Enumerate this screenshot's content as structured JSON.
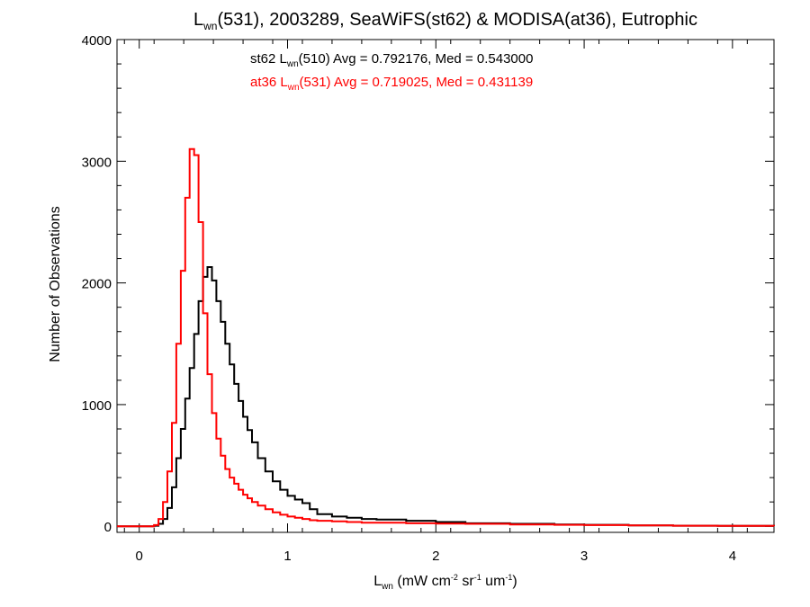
{
  "chart_data": {
    "type": "step-histogram",
    "title": {
      "base": "L",
      "sub": "wn",
      "rest": "(531), 2003289, SeaWiFS(st62) & MODISA(at36), Eutrophic"
    },
    "xlabel": {
      "base": "L",
      "sub": "wn",
      "p1": " (mW cm",
      "s1": "-2",
      "p2": " sr",
      "s2": "-1",
      "p3": " um",
      "s3": "-1",
      "p4": ")"
    },
    "ylabel": "Number of Observations",
    "xlim": [
      -0.15,
      4.28
    ],
    "ylim": [
      -50,
      4000
    ],
    "xticks": [
      0,
      1,
      2,
      3,
      4
    ],
    "xtick_labels": [
      "0",
      "1",
      "2",
      "3",
      "4"
    ],
    "yticks": [
      0,
      1000,
      2000,
      3000,
      4000
    ],
    "ytick_labels": [
      "0",
      "1000",
      "2000",
      "3000",
      "4000"
    ],
    "grid": false,
    "colors": {
      "st62": "#000000",
      "at36": "#ff0000"
    },
    "annotations": [
      {
        "part1": "st62 L",
        "sub": "wn",
        "part2": "(510) Avg = 0.792176, Med = 0.543000",
        "color": "#000000"
      },
      {
        "part1": "at36 L",
        "sub": "wn",
        "part2": "(531) Avg = 0.719025, Med = 0.431139",
        "color": "#ff0000"
      }
    ],
    "series": [
      {
        "color": "#000000",
        "x": [
          -0.15,
          0.0,
          0.1,
          0.13,
          0.16,
          0.19,
          0.22,
          0.25,
          0.28,
          0.31,
          0.34,
          0.37,
          0.4,
          0.43,
          0.46,
          0.49,
          0.52,
          0.55,
          0.58,
          0.61,
          0.64,
          0.67,
          0.7,
          0.73,
          0.76,
          0.8,
          0.85,
          0.9,
          0.95,
          1.0,
          1.05,
          1.1,
          1.15,
          1.2,
          1.3,
          1.4,
          1.5,
          1.6,
          1.8,
          2.0,
          2.2,
          2.5,
          2.8,
          3.0,
          3.3,
          3.6,
          3.9,
          4.28
        ],
        "y": [
          0,
          0,
          5,
          20,
          60,
          150,
          320,
          560,
          800,
          1050,
          1300,
          1580,
          1850,
          2050,
          2130,
          2020,
          1850,
          1680,
          1500,
          1330,
          1170,
          1030,
          900,
          790,
          690,
          560,
          450,
          370,
          300,
          250,
          220,
          190,
          140,
          100,
          80,
          70,
          60,
          55,
          45,
          35,
          25,
          20,
          15,
          12,
          8,
          5,
          3,
          2
        ]
      },
      {
        "color": "#ff0000",
        "x": [
          -0.15,
          0.0,
          0.1,
          0.13,
          0.16,
          0.19,
          0.22,
          0.25,
          0.28,
          0.31,
          0.34,
          0.37,
          0.4,
          0.43,
          0.46,
          0.49,
          0.52,
          0.55,
          0.58,
          0.61,
          0.64,
          0.67,
          0.7,
          0.73,
          0.76,
          0.8,
          0.85,
          0.9,
          0.95,
          1.0,
          1.05,
          1.1,
          1.15,
          1.2,
          1.3,
          1.4,
          1.5,
          1.6,
          1.8,
          2.0,
          2.2,
          2.5,
          2.8,
          3.0,
          3.3,
          3.6,
          3.9,
          4.28
        ],
        "y": [
          0,
          0,
          10,
          60,
          200,
          450,
          850,
          1500,
          2100,
          2700,
          3100,
          3050,
          2500,
          1750,
          1250,
          930,
          720,
          580,
          470,
          400,
          350,
          300,
          260,
          230,
          200,
          170,
          140,
          115,
          95,
          80,
          70,
          60,
          50,
          45,
          40,
          35,
          30,
          30,
          25,
          22,
          20,
          15,
          12,
          10,
          8,
          5,
          3,
          2
        ]
      }
    ]
  }
}
